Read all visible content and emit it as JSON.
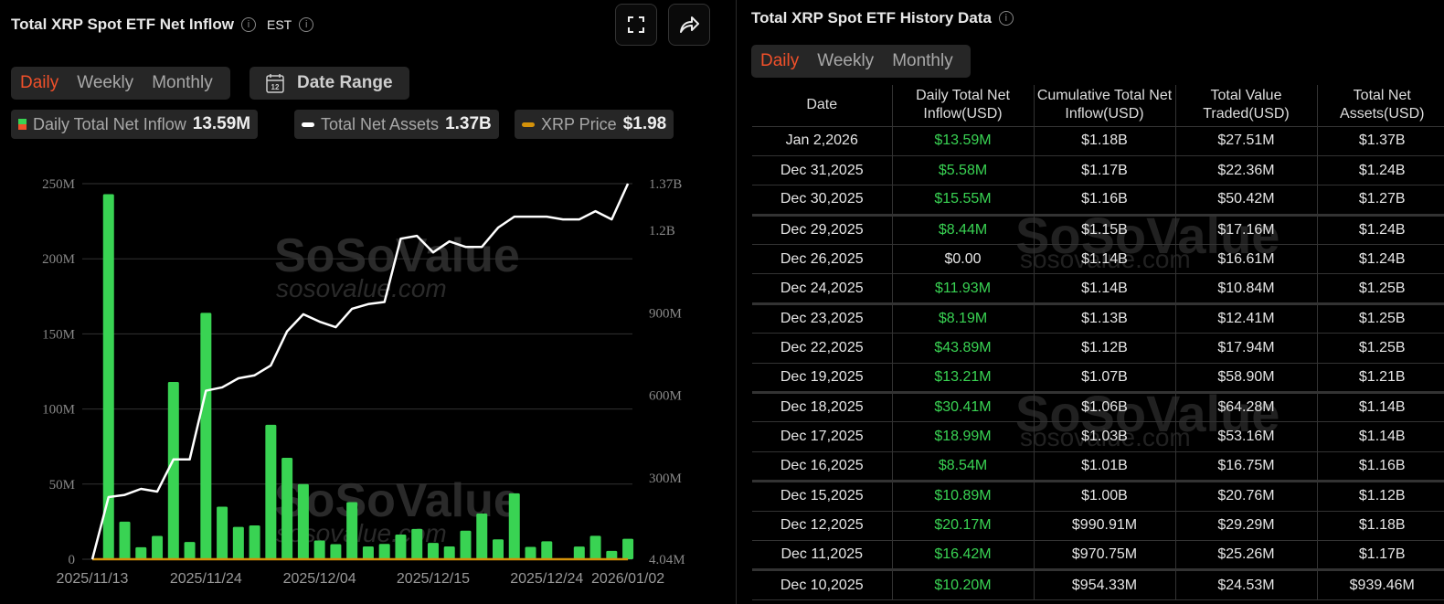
{
  "left": {
    "title": "Total XRP Spot ETF Net Inflow",
    "timezone": "EST",
    "period_tabs": [
      {
        "label": "Daily",
        "active": true
      },
      {
        "label": "Weekly",
        "active": false
      },
      {
        "label": "Monthly",
        "active": false
      }
    ],
    "date_range_label": "Date Range",
    "calendar_day": "12",
    "legend": [
      {
        "label": "Daily Total Net Inflow",
        "value": "13.59M",
        "color": "#39d353"
      },
      {
        "label": "Total Net Assets",
        "value": "1.37B",
        "color": "#ffffff"
      },
      {
        "label": "XRP Price",
        "value": "$1.98",
        "color": "#d4920a"
      }
    ],
    "watermark": {
      "brand": "SoSoValue",
      "url": "sosovalue.com"
    }
  },
  "chart_data": {
    "type": "bar+line",
    "dates": [
      "2025/11/13",
      "2025/11/14",
      "2025/11/17",
      "2025/11/18",
      "2025/11/19",
      "2025/11/20",
      "2025/11/21",
      "2025/11/24",
      "2025/11/25",
      "2025/11/26",
      "2025/11/28",
      "2025/12/01",
      "2025/12/02",
      "2025/12/03",
      "2025/12/04",
      "2025/12/05",
      "2025/12/08",
      "2025/12/09",
      "2025/12/10",
      "2025/12/11",
      "2025/12/12",
      "2025/12/15",
      "2025/12/16",
      "2025/12/17",
      "2025/12/18",
      "2025/12/19",
      "2025/12/22",
      "2025/12/23",
      "2025/12/24",
      "2025/12/26",
      "2025/12/29",
      "2025/12/30",
      "2025/12/31",
      "2026/01/02"
    ],
    "x_tick_labels": [
      "2025/11/13",
      "2025/11/24",
      "2025/12/04",
      "2025/12/15",
      "2025/12/24",
      "2026/01/02"
    ],
    "series": [
      {
        "name": "Daily Total Net Inflow",
        "type": "bar",
        "axis": "left",
        "color": "#39d353",
        "values": [
          0,
          243,
          25,
          8,
          15.5,
          118,
          11.5,
          164,
          35,
          21.5,
          22.5,
          89.5,
          67.5,
          50,
          12.5,
          10,
          38,
          8.5,
          10.2,
          16.42,
          20.17,
          10.89,
          8.54,
          18.99,
          30.41,
          13.21,
          43.89,
          8.19,
          11.93,
          0,
          8.44,
          15.55,
          5.58,
          13.59
        ]
      },
      {
        "name": "Total Net Assets",
        "type": "line",
        "axis": "right",
        "color": "#ffffff",
        "values": [
          4.04,
          230,
          238,
          260,
          250,
          367,
          367,
          617,
          629,
          662,
          673,
          709,
          833,
          895,
          868,
          848,
          915,
          932,
          939.46,
          1170,
          1180,
          1120,
          1160,
          1140,
          1140,
          1210,
          1250,
          1250,
          1250,
          1240,
          1240,
          1270,
          1240,
          1370
        ]
      },
      {
        "name": "XRP Price",
        "type": "line",
        "axis": "hidden",
        "color": "#d4920a"
      }
    ],
    "left_axis": {
      "unit": "M",
      "ylim": [
        0,
        250
      ],
      "ticks": [
        0,
        50,
        100,
        150,
        200,
        250
      ],
      "tick_labels": [
        "0",
        "50M",
        "100M",
        "150M",
        "200M",
        "250M"
      ]
    },
    "right_axis": {
      "unit": "M",
      "ylim": [
        4.04,
        1370
      ],
      "ticks": [
        4.04,
        300,
        600,
        900,
        1200,
        1370
      ],
      "tick_labels": [
        "4.04M",
        "300M",
        "600M",
        "900M",
        "1.2B",
        "1.37B"
      ]
    },
    "grid": true
  },
  "right": {
    "title": "History Data",
    "title_full": "Total XRP Spot ETF History Data",
    "period_tabs": [
      {
        "label": "Daily",
        "active": true
      },
      {
        "label": "Weekly",
        "active": false
      },
      {
        "label": "Monthly",
        "active": false
      }
    ],
    "columns": [
      "Date",
      "Daily Total Net Inflow(USD)",
      "Cumulative Total Net Inflow(USD)",
      "Total Value Traded(USD)",
      "Total Net Assets(USD)"
    ],
    "rows": [
      [
        "Jan 2,2026",
        "$13.59M",
        "$1.18B",
        "$27.51M",
        "$1.37B"
      ],
      [
        "Dec 31,2025",
        "$5.58M",
        "$1.17B",
        "$22.36M",
        "$1.24B"
      ],
      [
        "Dec 30,2025",
        "$15.55M",
        "$1.16B",
        "$50.42M",
        "$1.27B"
      ],
      [
        "Dec 29,2025",
        "$8.44M",
        "$1.15B",
        "$17.16M",
        "$1.24B"
      ],
      [
        "Dec 26,2025",
        "$0.00",
        "$1.14B",
        "$16.61M",
        "$1.24B"
      ],
      [
        "Dec 24,2025",
        "$11.93M",
        "$1.14B",
        "$10.84M",
        "$1.25B"
      ],
      [
        "Dec 23,2025",
        "$8.19M",
        "$1.13B",
        "$12.41M",
        "$1.25B"
      ],
      [
        "Dec 22,2025",
        "$43.89M",
        "$1.12B",
        "$17.94M",
        "$1.25B"
      ],
      [
        "Dec 19,2025",
        "$13.21M",
        "$1.07B",
        "$58.90M",
        "$1.21B"
      ],
      [
        "Dec 18,2025",
        "$30.41M",
        "$1.06B",
        "$64.28M",
        "$1.14B"
      ],
      [
        "Dec 17,2025",
        "$18.99M",
        "$1.03B",
        "$53.16M",
        "$1.14B"
      ],
      [
        "Dec 16,2025",
        "$8.54M",
        "$1.01B",
        "$16.75M",
        "$1.16B"
      ],
      [
        "Dec 15,2025",
        "$10.89M",
        "$1.00B",
        "$20.76M",
        "$1.12B"
      ],
      [
        "Dec 12,2025",
        "$20.17M",
        "$990.91M",
        "$29.29M",
        "$1.18B"
      ],
      [
        "Dec 11,2025",
        "$16.42M",
        "$970.75M",
        "$25.26M",
        "$1.17B"
      ],
      [
        "Dec 10,2025",
        "$10.20M",
        "$954.33M",
        "$24.53M",
        "$939.46M"
      ]
    ],
    "watermark": {
      "brand": "SoSoValue",
      "url": "sosovalue.com"
    }
  }
}
